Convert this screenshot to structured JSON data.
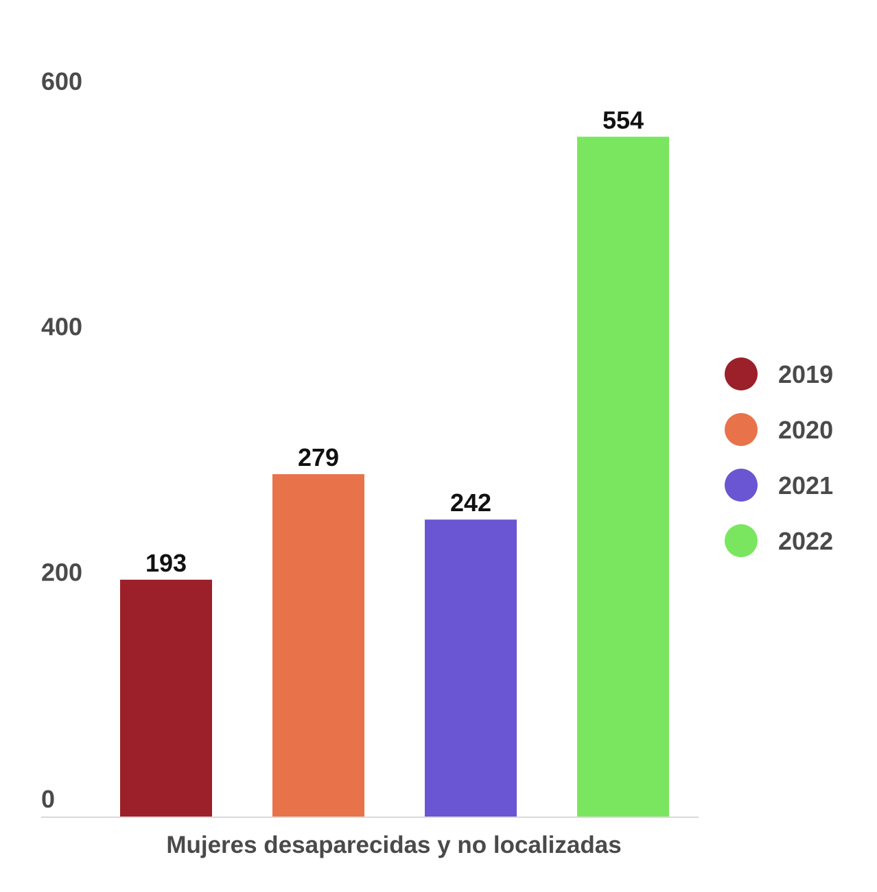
{
  "chart_data": {
    "type": "bar",
    "title": "",
    "xlabel": "Mujeres desaparecidas y no localizadas",
    "ylabel": "",
    "ylim": [
      0,
      600
    ],
    "yticks": [
      0,
      200,
      400,
      600
    ],
    "grid": false,
    "legend_position": "right",
    "series": [
      {
        "name": "2019",
        "value": 193,
        "color": "#9b2029"
      },
      {
        "name": "2020",
        "value": 279,
        "color": "#e8734a"
      },
      {
        "name": "2021",
        "value": 242,
        "color": "#6a56d3"
      },
      {
        "name": "2022",
        "value": 554,
        "color": "#7ae660"
      }
    ],
    "axis_color": "#d9d9d9"
  }
}
